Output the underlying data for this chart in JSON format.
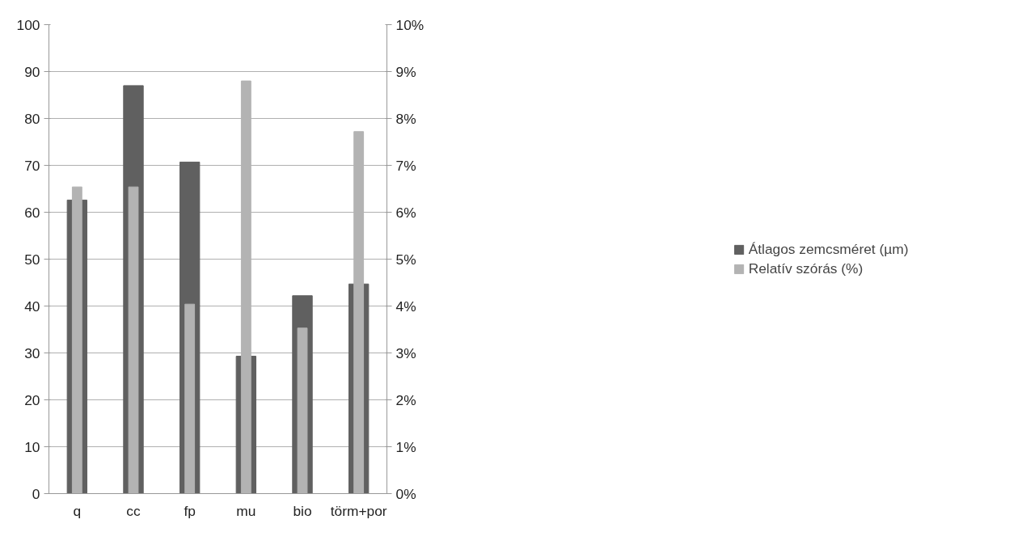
{
  "chart_data": {
    "type": "bar",
    "categories": [
      "q",
      "cc",
      "fp",
      "mu",
      "bio",
      "törm+por"
    ],
    "series": [
      {
        "name": "Átlagos zemcsméret (µm)",
        "color": "#606060",
        "values": [
          62.6,
          87.0,
          70.7,
          29.3,
          42.2,
          44.7
        ]
      },
      {
        "name": "Relatív szórás (%)",
        "color": "#b3b3b3",
        "axis": "y2",
        "values": [
          6.54,
          6.54,
          4.04,
          8.8,
          3.53,
          7.72
        ]
      }
    ],
    "ylim": [
      0,
      100
    ],
    "yticks": [
      0,
      10,
      20,
      30,
      40,
      50,
      60,
      70,
      80,
      90,
      100
    ],
    "y2lim": [
      0,
      10
    ],
    "y2ticks": [
      {
        "value": 0,
        "label": "0%"
      },
      {
        "value": 1,
        "label": "1%"
      },
      {
        "value": 2,
        "label": "2%"
      },
      {
        "value": 3,
        "label": "3%"
      },
      {
        "value": 4,
        "label": "4%"
      },
      {
        "value": 5,
        "label": "5%"
      },
      {
        "value": 6,
        "label": "6%"
      },
      {
        "value": 7,
        "label": "7%"
      },
      {
        "value": 8,
        "label": "8%"
      },
      {
        "value": 9,
        "label": "9%"
      },
      {
        "value": 10,
        "label": "10%"
      }
    ],
    "grid": "y",
    "legend": "right"
  }
}
